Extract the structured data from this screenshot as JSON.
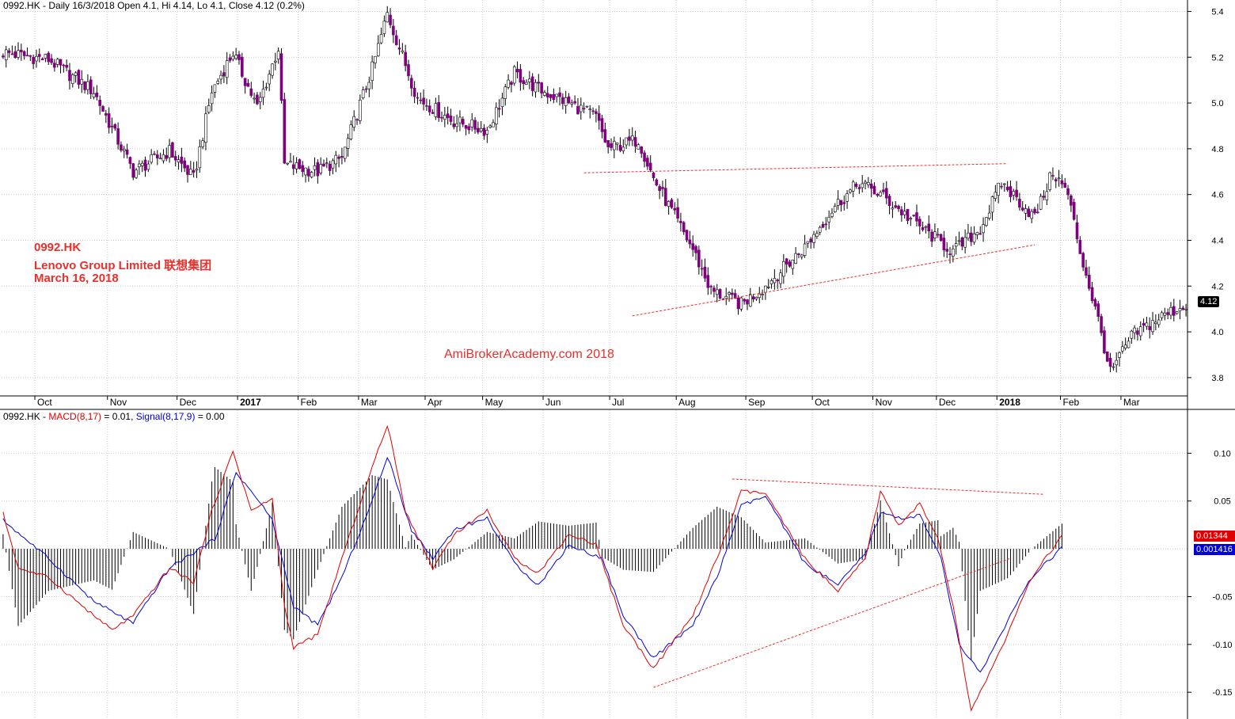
{
  "header": {
    "price_title": "0992.HK - Daily 16/3/2018 Open 4.1, Hi 4.14, Lo 4.1, Close 4.12 (0.2%)",
    "macd_prefix": "0992.HK - ",
    "macd_label": "MACD(8,17)",
    "macd_value": " = 0.01, ",
    "signal_label": "Signal(8,17,9)",
    "signal_value": " = 0.00"
  },
  "annotation": {
    "ticker": "0992.HK",
    "company": "Lenovo Group Limited 联想集团",
    "date": "March 16, 2018",
    "watermark": "AmiBrokerAcademy.com  2018"
  },
  "tags": {
    "close": "4.12",
    "macd": "0.01344",
    "signal": "0.001416"
  },
  "colors": {
    "up_body": "#ffffff",
    "down_body": "#800080",
    "candle_outline": "#000000",
    "macd": "#e00000",
    "signal": "#0000e0",
    "histogram": "#000000",
    "trendline": "#e8312d",
    "grid": "#cccccc"
  },
  "chart_data": [
    {
      "type": "candlestick",
      "title": "0992.HK - Daily 16/3/2018 Open 4.1, Hi 4.14, Lo 4.1, Close 4.12 (0.2%)",
      "ylim": [
        3.72,
        5.45
      ],
      "y_ticks": [
        3.8,
        4.0,
        4.2,
        4.4,
        4.6,
        4.8,
        5.0,
        5.2,
        5.4
      ],
      "months": [
        "Oct",
        "Nov",
        "Dec",
        "2017",
        "Feb",
        "Mar",
        "Apr",
        "May",
        "Jun",
        "Jul",
        "Aug",
        "Sep",
        "Oct",
        "Nov",
        "Dec",
        "2018",
        "Feb",
        "Mar"
      ],
      "bold_months": [
        "2017",
        "2018"
      ],
      "close_path": [
        [
          0,
          5.22
        ],
        [
          15,
          5.19
        ],
        [
          30,
          5.05
        ],
        [
          43,
          4.7
        ],
        [
          55,
          4.79
        ],
        [
          63,
          4.67
        ],
        [
          69,
          5.05
        ],
        [
          76,
          5.22
        ],
        [
          84,
          4.98
        ],
        [
          91,
          5.24
        ],
        [
          93,
          4.73
        ],
        [
          104,
          4.7
        ],
        [
          112,
          4.76
        ],
        [
          122,
          5.15
        ],
        [
          127,
          5.39
        ],
        [
          137,
          5.02
        ],
        [
          149,
          4.92
        ],
        [
          160,
          4.88
        ],
        [
          169,
          5.13
        ],
        [
          177,
          5.06
        ],
        [
          187,
          5.0
        ],
        [
          196,
          4.94
        ],
        [
          200,
          4.8
        ],
        [
          210,
          4.84
        ],
        [
          215,
          4.67
        ],
        [
          228,
          4.36
        ],
        [
          234,
          4.18
        ],
        [
          244,
          4.12
        ],
        [
          252,
          4.2
        ],
        [
          265,
          4.37
        ],
        [
          275,
          4.55
        ],
        [
          283,
          4.65
        ],
        [
          290,
          4.6
        ],
        [
          303,
          4.46
        ],
        [
          314,
          4.35
        ],
        [
          323,
          4.45
        ],
        [
          330,
          4.65
        ],
        [
          341,
          4.5
        ],
        [
          347,
          4.7
        ],
        [
          352,
          4.6
        ],
        [
          356,
          4.35
        ],
        [
          362,
          4.05
        ],
        [
          366,
          3.82
        ],
        [
          373,
          3.98
        ],
        [
          382,
          4.06
        ],
        [
          388,
          4.1
        ],
        [
          391,
          4.12
        ]
      ],
      "trendlines": [
        {
          "from": [
            3.72,
            4.695
          ],
          "to": [
            4.3,
            4.735
          ]
        },
        {
          "from": [
            3.65,
            4.07
          ],
          "to": [
            5.0,
            4.38
          ]
        }
      ]
    },
    {
      "type": "line",
      "title": "MACD(8,17) = 0.01, Signal(8,17,9) = 0.00",
      "series": [
        {
          "name": "MACD(8,17)",
          "values": [
            [
              0,
              0.037
            ],
            [
              5,
              -0.02
            ],
            [
              15,
              -0.03
            ],
            [
              30,
              -0.07
            ],
            [
              36,
              -0.085
            ],
            [
              43,
              -0.07
            ],
            [
              55,
              -0.02
            ],
            [
              63,
              -0.035
            ],
            [
              69,
              0.04
            ],
            [
              76,
              0.102
            ],
            [
              82,
              0.04
            ],
            [
              89,
              0.052
            ],
            [
              93,
              -0.06
            ],
            [
              96,
              -0.103
            ],
            [
              104,
              -0.09
            ],
            [
              112,
              -0.01
            ],
            [
              122,
              0.085
            ],
            [
              127,
              0.13
            ],
            [
              133,
              0.04
            ],
            [
              142,
              -0.02
            ],
            [
              149,
              0.015
            ],
            [
              160,
              0.04
            ],
            [
              169,
              -0.01
            ],
            [
              177,
              -0.025
            ],
            [
              187,
              0.015
            ],
            [
              196,
              0.005
            ],
            [
              205,
              -0.08
            ],
            [
              215,
              -0.125
            ],
            [
              228,
              -0.07
            ],
            [
              236,
              -0.01
            ],
            [
              244,
              0.06
            ],
            [
              252,
              0.058
            ],
            [
              265,
              -0.01
            ],
            [
              276,
              -0.045
            ],
            [
              285,
              -0.01
            ],
            [
              290,
              0.06
            ],
            [
              296,
              0.025
            ],
            [
              303,
              0.047
            ],
            [
              309,
              0.01
            ],
            [
              314,
              -0.06
            ],
            [
              320,
              -0.17
            ],
            [
              332,
              -0.09
            ],
            [
              340,
              -0.03
            ],
            [
              350,
              0.0134
            ]
          ]
        },
        {
          "name": "Signal(8,17,9)",
          "values": [
            [
              0,
              0.03
            ],
            [
              15,
              -0.01
            ],
            [
              30,
              -0.055
            ],
            [
              43,
              -0.078
            ],
            [
              55,
              -0.02
            ],
            [
              70,
              0.01
            ],
            [
              77,
              0.08
            ],
            [
              84,
              0.052
            ],
            [
              89,
              0.03
            ],
            [
              96,
              -0.06
            ],
            [
              104,
              -0.08
            ],
            [
              112,
              -0.03
            ],
            [
              122,
              0.05
            ],
            [
              127,
              0.097
            ],
            [
              135,
              0.02
            ],
            [
              142,
              -0.01
            ],
            [
              149,
              0.02
            ],
            [
              160,
              0.032
            ],
            [
              169,
              -0.015
            ],
            [
              177,
              -0.038
            ],
            [
              187,
              0.004
            ],
            [
              198,
              -0.01
            ],
            [
              205,
              -0.07
            ],
            [
              215,
              -0.114
            ],
            [
              228,
              -0.08
            ],
            [
              236,
              -0.03
            ],
            [
              244,
              0.045
            ],
            [
              252,
              0.055
            ],
            [
              265,
              -0.015
            ],
            [
              276,
              -0.038
            ],
            [
              285,
              -0.005
            ],
            [
              290,
              0.037
            ],
            [
              298,
              0.032
            ],
            [
              303,
              0.035
            ],
            [
              310,
              -0.01
            ],
            [
              316,
              -0.1
            ],
            [
              323,
              -0.13
            ],
            [
              333,
              -0.07
            ],
            [
              340,
              -0.03
            ],
            [
              350,
              0.0014
            ]
          ]
        }
      ],
      "ylim": [
        -0.178,
        0.145
      ],
      "y_ticks": [
        -0.15,
        -0.1,
        -0.05,
        0.05,
        0.1
      ],
      "trendlines": [
        {
          "from": [
            215,
            -0.145
          ],
          "to": [
            333,
            -0.01
          ]
        },
        {
          "from": [
            241,
            0.073
          ],
          "to": [
            344,
            0.057
          ]
        }
      ]
    }
  ]
}
